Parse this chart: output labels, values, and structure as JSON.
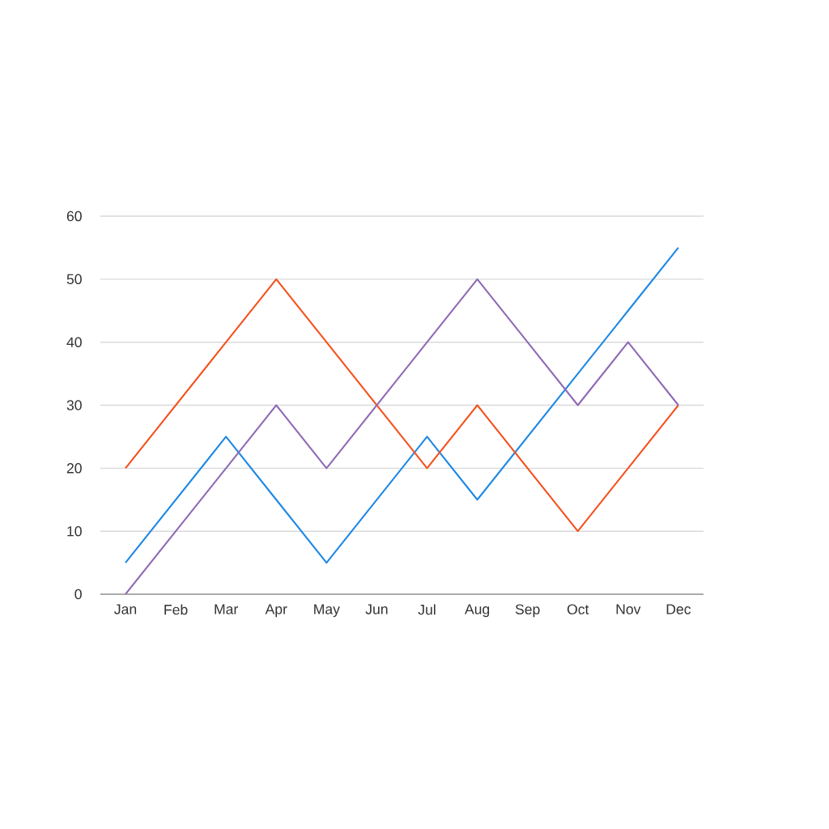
{
  "chart_data": {
    "type": "line",
    "categories": [
      "Jan",
      "Feb",
      "Mar",
      "Apr",
      "May",
      "Jun",
      "Jul",
      "Aug",
      "Sep",
      "Oct",
      "Nov",
      "Dec"
    ],
    "series": [
      {
        "color": "#1e88e5",
        "values": [
          5,
          15,
          25,
          15,
          5,
          15,
          25,
          15,
          25,
          35,
          45,
          55
        ]
      },
      {
        "color": "#f4511e",
        "values": [
          20,
          30,
          40,
          50,
          40,
          30,
          20,
          30,
          20,
          10,
          20,
          30
        ]
      },
      {
        "color": "#8e6bb5",
        "values": [
          0,
          10,
          20,
          30,
          20,
          30,
          40,
          50,
          40,
          30,
          40,
          30
        ]
      }
    ],
    "ylim": [
      0,
      60
    ],
    "yticks": [
      0,
      10,
      20,
      30,
      40,
      50,
      60
    ],
    "grid": "y",
    "marker": "none",
    "line_style": "solid"
  }
}
